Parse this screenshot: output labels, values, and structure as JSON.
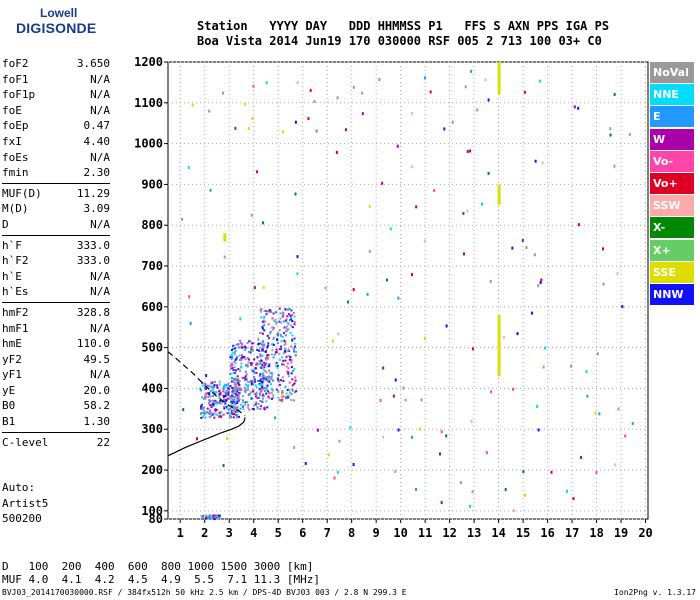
{
  "logo": {
    "top": "Lowell",
    "main": "DIGISONDE"
  },
  "header": {
    "labels": [
      "Station",
      "YYYY",
      "DAY",
      "DDD",
      "HHMMSS",
      "P1",
      "FFS",
      "S",
      "AXN",
      "PPS",
      "IGA",
      "PS"
    ],
    "values": [
      "Boa Vista",
      "2014",
      "Jun19",
      "170",
      "030000",
      "RSF",
      "005",
      "2",
      "713",
      "100",
      "03+",
      "C0"
    ]
  },
  "params": [
    [
      {
        "name": "foF2",
        "value": "3.650"
      },
      {
        "name": "foF1",
        "value": "N/A"
      },
      {
        "name": "foF1p",
        "value": "N/A"
      },
      {
        "name": "foE",
        "value": "N/A"
      },
      {
        "name": "foEp",
        "value": "0.47"
      },
      {
        "name": "fxI",
        "value": "4.40"
      },
      {
        "name": "foEs",
        "value": "N/A"
      },
      {
        "name": "fmin",
        "value": "2.30"
      }
    ],
    [
      {
        "name": "MUF(D)",
        "value": "11.29"
      },
      {
        "name": "M(D)",
        "value": "3.09"
      },
      {
        "name": "D",
        "value": "N/A"
      }
    ],
    [
      {
        "name": "h`F",
        "value": "333.0"
      },
      {
        "name": "h`F2",
        "value": "333.0"
      },
      {
        "name": "h`E",
        "value": "N/A"
      },
      {
        "name": "h`Es",
        "value": "N/A"
      }
    ],
    [
      {
        "name": "hmF2",
        "value": "328.8"
      },
      {
        "name": "hmF1",
        "value": "N/A"
      },
      {
        "name": "hmE",
        "value": "110.0"
      },
      {
        "name": "yF2",
        "value": "49.5"
      },
      {
        "name": "yF1",
        "value": "N/A"
      },
      {
        "name": "yE",
        "value": "20.0"
      },
      {
        "name": "B0",
        "value": "58.2"
      },
      {
        "name": "B1",
        "value": "1.30"
      }
    ],
    [
      {
        "name": "C-level",
        "value": "22"
      }
    ]
  ],
  "auto": [
    "Auto:",
    "Artist5",
    "500200"
  ],
  "legend": [
    {
      "label": "NoVal",
      "color": "#999999"
    },
    {
      "label": "NNE",
      "color": "#00ddff"
    },
    {
      "label": "E",
      "color": "#2299ff"
    },
    {
      "label": "W",
      "color": "#aa00aa"
    },
    {
      "label": "Vo-",
      "color": "#ff44aa"
    },
    {
      "label": "Vo+",
      "color": "#dd0022"
    },
    {
      "label": "SSW",
      "color": "#ffaaaa"
    },
    {
      "label": "X-",
      "color": "#008800"
    },
    {
      "label": "X+",
      "color": "#66cc66"
    },
    {
      "label": "SSE",
      "color": "#dddd00"
    },
    {
      "label": "NNW",
      "color": "#1111ff"
    }
  ],
  "dtable": {
    "d_label": "D",
    "d_values": [
      "100",
      "200",
      "400",
      "600",
      "800",
      "1000",
      "1500",
      "3000"
    ],
    "d_unit": "[km]",
    "muf_label": "MUF",
    "muf_values": [
      "4.0",
      "4.1",
      "4.2",
      "4.5",
      "4.9",
      "5.5",
      "7.1",
      "11.3"
    ],
    "muf_unit": "[MHz]"
  },
  "footer": "BVJ03_2014170030000.RSF / 384fx512h 50 kHz 2.5 km / DPS-4D BVJ03 003 / 2.8 N 299.3 E",
  "version": "Ion2Png v. 1.3.17",
  "chart_data": {
    "type": "scatter",
    "title": "",
    "xlabel": "",
    "ylabel": "",
    "xlim": [
      0.5,
      20.1
    ],
    "ylim": [
      80,
      1200
    ],
    "xticks": [
      1,
      2,
      3,
      4,
      5,
      6,
      7,
      8,
      9,
      10,
      11,
      12,
      13,
      14,
      15,
      16,
      17,
      18,
      19,
      20
    ],
    "yticks": [
      80,
      100,
      200,
      300,
      400,
      500,
      600,
      700,
      800,
      900,
      1000,
      1100,
      1200
    ],
    "grid": true,
    "series": [
      {
        "name": "profile",
        "kind": "line",
        "style": "solid",
        "color": "#000000",
        "x": [
          0.5,
          1.2,
          1.8,
          2.3,
          2.7,
          3.1,
          3.4,
          3.6,
          3.65
        ],
        "y": [
          235,
          255,
          270,
          282,
          292,
          300,
          308,
          318,
          329
        ]
      },
      {
        "name": "trace",
        "kind": "line",
        "style": "dashed",
        "color": "#000000",
        "x": [
          0.5,
          0.9,
          1.5,
          2.0,
          2.5,
          3.0,
          3.4,
          3.65
        ],
        "y": [
          490,
          470,
          438,
          408,
          380,
          358,
          345,
          333
        ]
      }
    ],
    "clusters": [
      {
        "x0": 1.8,
        "x1": 3.4,
        "y0": 330,
        "y1": 420,
        "n": 260
      },
      {
        "x0": 3.0,
        "x1": 4.6,
        "y0": 350,
        "y1": 520,
        "n": 300
      },
      {
        "x0": 4.2,
        "x1": 5.7,
        "y0": 370,
        "y1": 600,
        "n": 280
      },
      {
        "x0": 1.8,
        "x1": 2.6,
        "y0": 82,
        "y1": 92,
        "n": 40
      }
    ],
    "sparse_points": 170,
    "ssb_bars": [
      {
        "x": 14.0,
        "y0": 1120,
        "y1": 1200
      },
      {
        "x": 14.0,
        "y0": 850,
        "y1": 900
      },
      {
        "x": 14.0,
        "y0": 430,
        "y1": 580
      },
      {
        "x": 2.8,
        "y0": 760,
        "y1": 780
      }
    ]
  }
}
